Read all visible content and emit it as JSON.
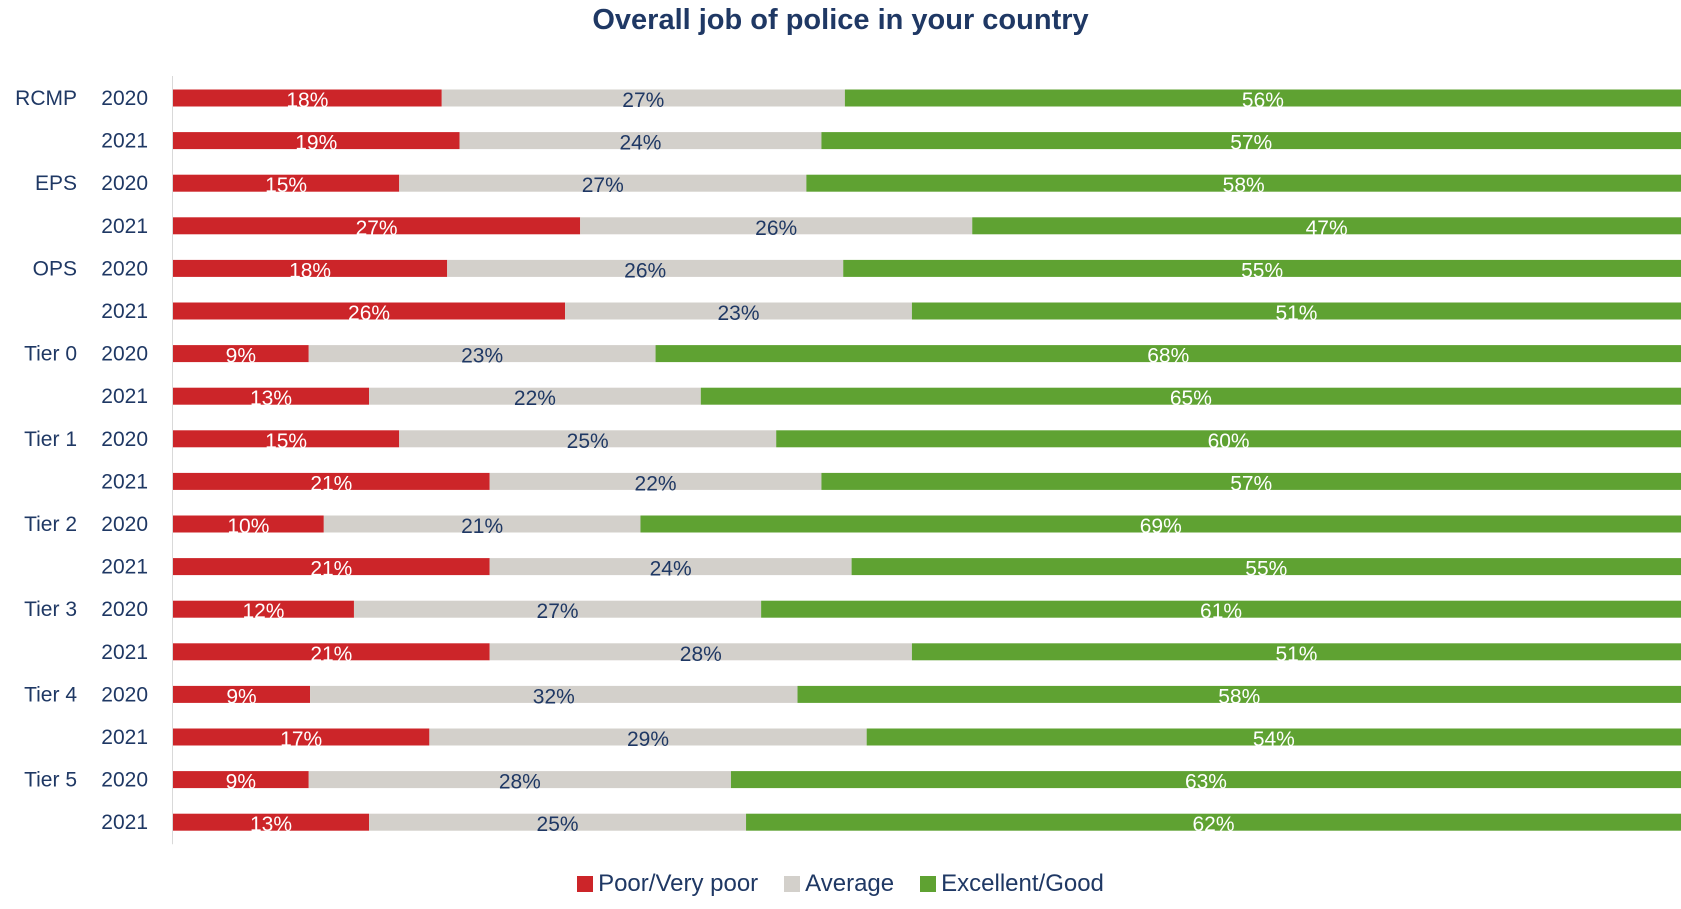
{
  "chart_data": {
    "type": "bar",
    "orientation": "horizontal",
    "stacked": true,
    "title": "Overall job of police in your country",
    "groups": [
      "RCMP",
      "EPS",
      "OPS",
      "Tier 0",
      "Tier 1",
      "Tier 2",
      "Tier 3",
      "Tier 4",
      "Tier 5"
    ],
    "years": [
      "2020",
      "2021"
    ],
    "rows": [
      {
        "group": "RCMP",
        "year": "2020"
      },
      {
        "group": "",
        "year": "2021"
      },
      {
        "group": "EPS",
        "year": "2020"
      },
      {
        "group": "",
        "year": "2021"
      },
      {
        "group": "OPS",
        "year": "2020"
      },
      {
        "group": "",
        "year": "2021"
      },
      {
        "group": "Tier 0",
        "year": "2020"
      },
      {
        "group": "",
        "year": "2021"
      },
      {
        "group": "Tier 1",
        "year": "2020"
      },
      {
        "group": "",
        "year": "2021"
      },
      {
        "group": "Tier 2",
        "year": "2020"
      },
      {
        "group": "",
        "year": "2021"
      },
      {
        "group": "Tier 3",
        "year": "2020"
      },
      {
        "group": "",
        "year": "2021"
      },
      {
        "group": "Tier 4",
        "year": "2020"
      },
      {
        "group": "",
        "year": "2021"
      },
      {
        "group": "Tier 5",
        "year": "2020"
      },
      {
        "group": "",
        "year": "2021"
      }
    ],
    "series": [
      {
        "name": "Poor/Very poor",
        "color": "#cc2529",
        "label_color": "#ffffff",
        "values": [
          18,
          19,
          15,
          27,
          18,
          26,
          9,
          13,
          15,
          21,
          10,
          21,
          12,
          21,
          9,
          17,
          9,
          13
        ]
      },
      {
        "name": "Average",
        "color": "#d3d0cb",
        "label_color": "#1f3864",
        "values": [
          27,
          24,
          27,
          26,
          26,
          23,
          23,
          22,
          25,
          22,
          21,
          24,
          27,
          28,
          32,
          29,
          28,
          25
        ]
      },
      {
        "name": "Excellent/Good",
        "color": "#5fa232",
        "label_color": "#ffffff",
        "values": [
          56,
          57,
          58,
          47,
          55,
          51,
          68,
          65,
          60,
          57,
          69,
          55,
          61,
          51,
          58,
          54,
          63,
          62
        ]
      }
    ],
    "value_suffix": "%",
    "grid": false,
    "legend_position": "bottom"
  }
}
